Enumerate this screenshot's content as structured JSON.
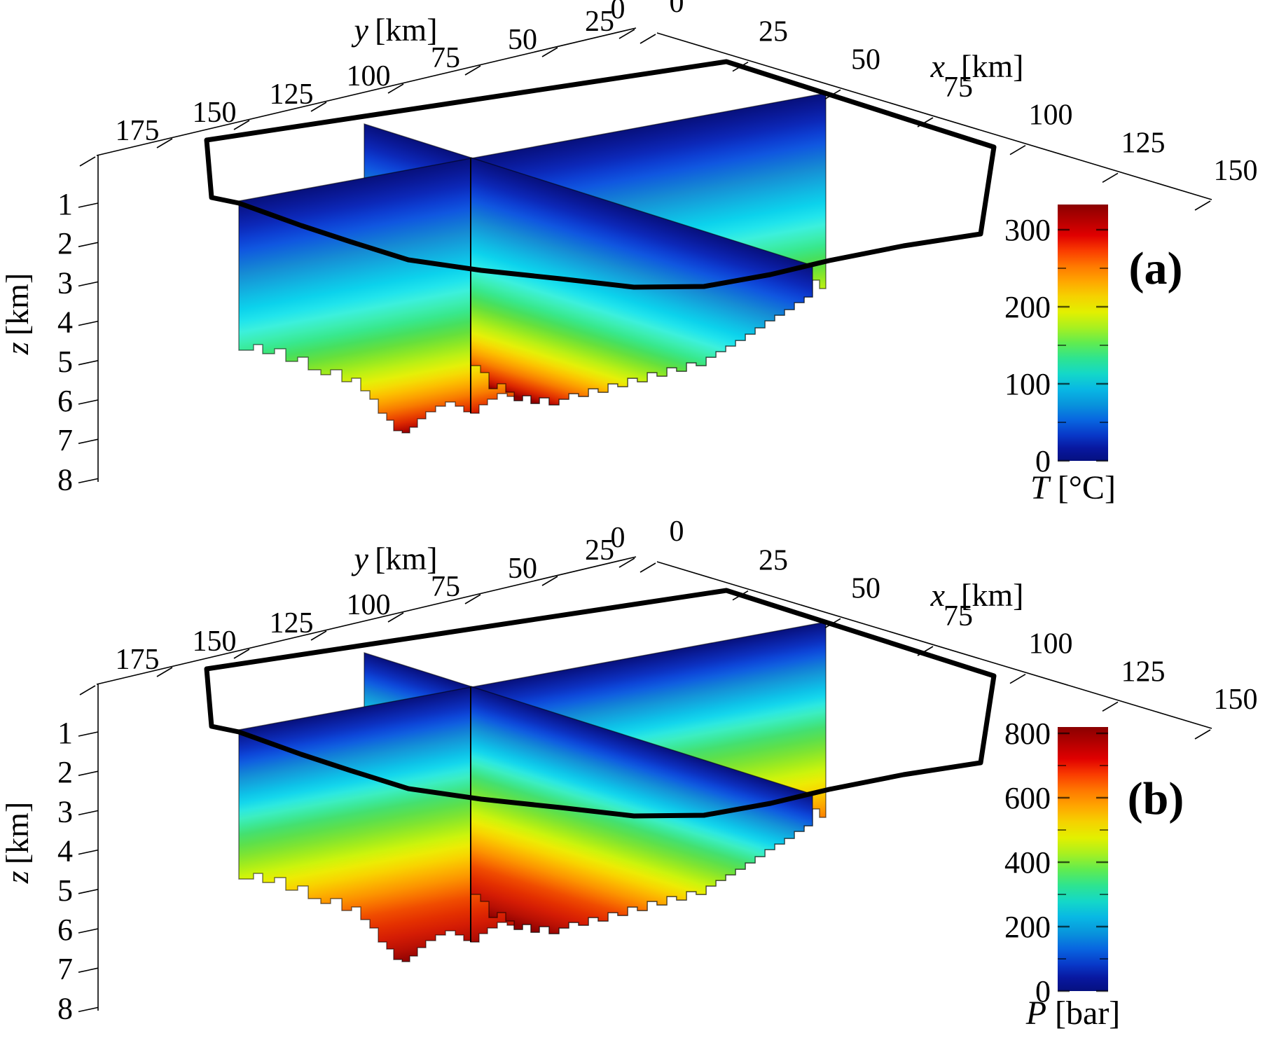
{
  "figure": {
    "background": "#ffffff",
    "kind": "3D fence (cross-section) plots of subsurface fields with jet colorbars"
  },
  "chart_data": [
    {
      "type": "heatmap",
      "subtype": "3d-fence-cross-section",
      "panel_letter": "(a)",
      "quantity": "temperature",
      "units": "°C",
      "x_axis": {
        "label_var": "x",
        "label_unit": "[km]",
        "range": [
          0,
          150
        ],
        "ticks": [
          0,
          25,
          50,
          75,
          100,
          125,
          150
        ]
      },
      "y_axis": {
        "label_var": "y",
        "label_unit": "[km]",
        "range": [
          0,
          175
        ],
        "ticks": [
          0,
          25,
          50,
          75,
          100,
          125,
          150,
          175
        ]
      },
      "z_axis": {
        "label_var": "z",
        "label_unit": "[km]",
        "range": [
          0,
          8
        ],
        "ticks": [
          1,
          2,
          3,
          4,
          5,
          6,
          7,
          8
        ],
        "direction": "depth-down"
      },
      "color_axis": {
        "label_var": "T",
        "label_unit": "[°C]",
        "major_ticks": [
          0,
          100,
          200,
          300
        ],
        "approx_max": 330,
        "colormap": "jet"
      },
      "fence_slices": {
        "along_y_at_x_km": 75,
        "along_x_at_y_km": 75
      },
      "description": "Temperature on two intersecting vertical slices: ~0 °C (dark blue) at the top surface increasing to >300 °C (dark red) at ~8 km depth; thick black polygon marks the model domain boundary on the top surface."
    },
    {
      "type": "heatmap",
      "subtype": "3d-fence-cross-section",
      "panel_letter": "(b)",
      "quantity": "pressure",
      "units": "bar",
      "x_axis": {
        "label_var": "x",
        "label_unit": "[km]",
        "range": [
          0,
          150
        ],
        "ticks": [
          0,
          25,
          50,
          75,
          100,
          125,
          150
        ]
      },
      "y_axis": {
        "label_var": "y",
        "label_unit": "[km]",
        "range": [
          0,
          175
        ],
        "ticks": [
          0,
          25,
          50,
          75,
          100,
          125,
          150,
          175
        ]
      },
      "z_axis": {
        "label_var": "z",
        "label_unit": "[km]",
        "range": [
          0,
          8
        ],
        "ticks": [
          1,
          2,
          3,
          4,
          5,
          6,
          7,
          8
        ],
        "direction": "depth-down"
      },
      "color_axis": {
        "label_var": "P",
        "label_unit": "[bar]",
        "major_ticks": [
          0,
          200,
          400,
          600,
          800
        ],
        "approx_max": 820,
        "colormap": "jet"
      },
      "fence_slices": {
        "along_y_at_x_km": 75,
        "along_x_at_y_km": 75
      },
      "description": "Pressure on the same two intersecting vertical slices: ~0 bar (dark blue) at the surface increasing nearly hydrostatically to >800 bar (dark red) at ~8 km depth; thick black polygon marks the model domain boundary."
    }
  ],
  "colors": {
    "boundary": "#000000",
    "axis_line": "#000000",
    "text": "#000000",
    "colorbar_stops_top_to_bottom": [
      [
        0.0,
        "#8a0000"
      ],
      [
        0.06,
        "#b40000"
      ],
      [
        0.12,
        "#e00000"
      ],
      [
        0.18,
        "#fa3c00"
      ],
      [
        0.24,
        "#ff7800"
      ],
      [
        0.3,
        "#ffa600"
      ],
      [
        0.36,
        "#f5d200"
      ],
      [
        0.42,
        "#e2f000"
      ],
      [
        0.48,
        "#a8f020"
      ],
      [
        0.54,
        "#60ec50"
      ],
      [
        0.6,
        "#2ee490"
      ],
      [
        0.66,
        "#14d8c8"
      ],
      [
        0.72,
        "#08b8e4"
      ],
      [
        0.78,
        "#0894dc"
      ],
      [
        0.84,
        "#0866e0"
      ],
      [
        0.9,
        "#0838c8"
      ],
      [
        0.95,
        "#0818a0"
      ],
      [
        1.0,
        "#051080"
      ]
    ],
    "fence_stops_temperature": [
      [
        0.0,
        "#07107c"
      ],
      [
        0.05,
        "#0a1a9a"
      ],
      [
        0.1,
        "#0c28b8"
      ],
      [
        0.145,
        "#0d3ed2"
      ],
      [
        0.19,
        "#1057e0"
      ],
      [
        0.235,
        "#1272d8"
      ],
      [
        0.28,
        "#168cd4"
      ],
      [
        0.325,
        "#14a4dc"
      ],
      [
        0.37,
        "#10bce4"
      ],
      [
        0.415,
        "#0cd2ec"
      ],
      [
        0.46,
        "#20e4ec"
      ],
      [
        0.5,
        "#3cf0dc"
      ],
      [
        0.54,
        "#3ceeb4"
      ],
      [
        0.58,
        "#38e88c"
      ],
      [
        0.62,
        "#46e060"
      ],
      [
        0.66,
        "#66e03c"
      ],
      [
        0.7,
        "#90e824"
      ],
      [
        0.74,
        "#bcf014"
      ],
      [
        0.78,
        "#e4f008"
      ],
      [
        0.81,
        "#f4dc04"
      ],
      [
        0.84,
        "#fcc000"
      ],
      [
        0.87,
        "#fca000"
      ],
      [
        0.9,
        "#f87c00"
      ],
      [
        0.93,
        "#ee5000"
      ],
      [
        0.96,
        "#dc2800"
      ],
      [
        0.985,
        "#b80c00"
      ],
      [
        1.0,
        "#8f0000"
      ]
    ],
    "fence_stops_pressure": [
      [
        0.0,
        "#07107c"
      ],
      [
        0.035,
        "#0a1f9f"
      ],
      [
        0.07,
        "#0c30bf"
      ],
      [
        0.1,
        "#0d46d8"
      ],
      [
        0.13,
        "#1060e0"
      ],
      [
        0.16,
        "#127cd8"
      ],
      [
        0.19,
        "#1495d8"
      ],
      [
        0.22,
        "#12abe0"
      ],
      [
        0.25,
        "#0ec2e8"
      ],
      [
        0.28,
        "#14d6ec"
      ],
      [
        0.31,
        "#2ce8e0"
      ],
      [
        0.34,
        "#3ceec0"
      ],
      [
        0.37,
        "#3ce898"
      ],
      [
        0.4,
        "#44e070"
      ],
      [
        0.44,
        "#5ce04c"
      ],
      [
        0.48,
        "#7ee432"
      ],
      [
        0.52,
        "#a4ec1c"
      ],
      [
        0.56,
        "#ccf40c"
      ],
      [
        0.6,
        "#ecec04"
      ],
      [
        0.64,
        "#f8d400"
      ],
      [
        0.68,
        "#fcb400"
      ],
      [
        0.72,
        "#fc9400"
      ],
      [
        0.76,
        "#f87000"
      ],
      [
        0.8,
        "#f04c00"
      ],
      [
        0.85,
        "#e43000"
      ],
      [
        0.9,
        "#d41c04"
      ],
      [
        0.95,
        "#b81004"
      ],
      [
        1.0,
        "#8f0202"
      ]
    ]
  }
}
